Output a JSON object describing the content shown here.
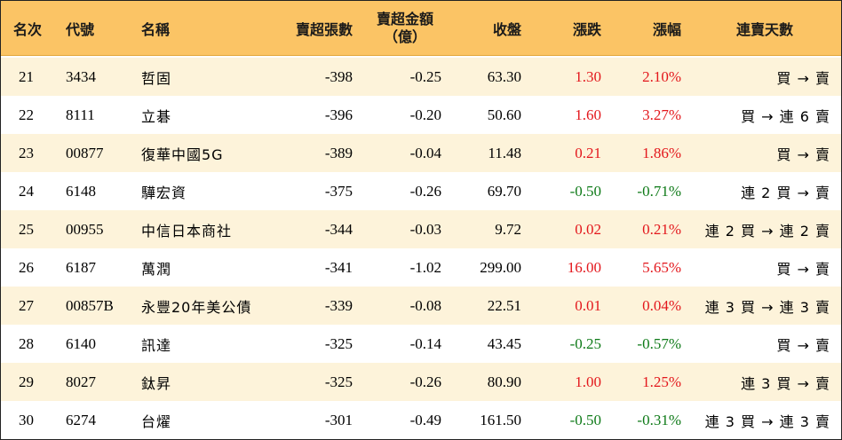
{
  "columns": [
    "名次",
    "代號",
    "名稱",
    "賣超張數",
    "賣超金額",
    "（億）",
    "收盤",
    "漲跌",
    "漲幅",
    "連賣天數"
  ],
  "rows": [
    {
      "rank": "21",
      "code": "3434",
      "name": "哲固",
      "shares": "-398",
      "amount": "-0.25",
      "close": "63.30",
      "change": "1.30",
      "pct": "2.10%",
      "dir": "up",
      "streak": "買 → 賣"
    },
    {
      "rank": "22",
      "code": "8111",
      "name": "立碁",
      "shares": "-396",
      "amount": "-0.20",
      "close": "50.60",
      "change": "1.60",
      "pct": "3.27%",
      "dir": "up",
      "streak": "買 → 連 6 賣"
    },
    {
      "rank": "23",
      "code": "00877",
      "name": "復華中國5G",
      "shares": "-389",
      "amount": "-0.04",
      "close": "11.48",
      "change": "0.21",
      "pct": "1.86%",
      "dir": "up",
      "streak": "買 → 賣"
    },
    {
      "rank": "24",
      "code": "6148",
      "name": "驊宏資",
      "shares": "-375",
      "amount": "-0.26",
      "close": "69.70",
      "change": "-0.50",
      "pct": "-0.71%",
      "dir": "down",
      "streak": "連 2 買 → 賣"
    },
    {
      "rank": "25",
      "code": "00955",
      "name": "中信日本商社",
      "shares": "-344",
      "amount": "-0.03",
      "close": "9.72",
      "change": "0.02",
      "pct": "0.21%",
      "dir": "up",
      "streak": "連 2 買 → 連 2 賣"
    },
    {
      "rank": "26",
      "code": "6187",
      "name": "萬潤",
      "shares": "-341",
      "amount": "-1.02",
      "close": "299.00",
      "change": "16.00",
      "pct": "5.65%",
      "dir": "up",
      "streak": "買 → 賣"
    },
    {
      "rank": "27",
      "code": "00857B",
      "name": "永豐20年美公債",
      "shares": "-339",
      "amount": "-0.08",
      "close": "22.51",
      "change": "0.01",
      "pct": "0.04%",
      "dir": "up",
      "streak": "連 3 買 → 連 3 賣"
    },
    {
      "rank": "28",
      "code": "6140",
      "name": "訊達",
      "shares": "-325",
      "amount": "-0.14",
      "close": "43.45",
      "change": "-0.25",
      "pct": "-0.57%",
      "dir": "down",
      "streak": "買 → 賣"
    },
    {
      "rank": "29",
      "code": "8027",
      "name": "鈦昇",
      "shares": "-325",
      "amount": "-0.26",
      "close": "80.90",
      "change": "1.00",
      "pct": "1.25%",
      "dir": "up",
      "streak": "連 3 買 → 賣"
    },
    {
      "rank": "30",
      "code": "6274",
      "name": "台燿",
      "shares": "-301",
      "amount": "-0.49",
      "close": "161.50",
      "change": "-0.50",
      "pct": "-0.31%",
      "dir": "down",
      "streak": "連 3 買 → 連 3 賣"
    }
  ],
  "colors": {
    "header_bg": "#fbc465",
    "row_alt_bg": "#fdf3da",
    "up": "#e3171c",
    "down": "#0e7a18"
  }
}
